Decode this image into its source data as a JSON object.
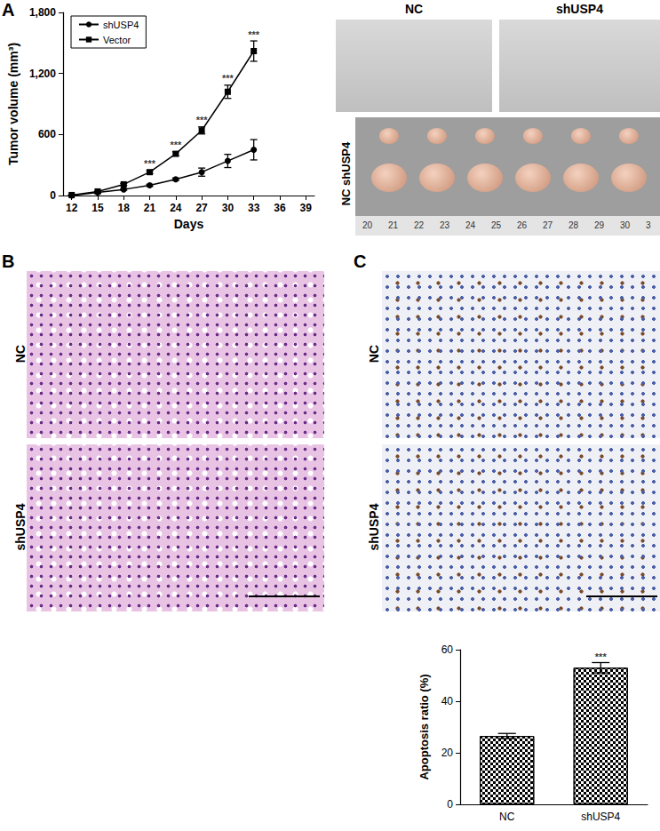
{
  "chart_data": [
    {
      "type": "line",
      "xlabel": "Days",
      "ylabel": "Tumor volume (mm³)",
      "x": [
        12,
        15,
        18,
        21,
        24,
        27,
        30,
        33
      ],
      "xlim": [
        11,
        40
      ],
      "xticks": [
        12,
        15,
        18,
        21,
        24,
        27,
        30,
        33,
        36,
        39
      ],
      "ylim": [
        0,
        1800
      ],
      "yticks": [
        0,
        600,
        {
          "value": 1200,
          "label": "1,200"
        },
        {
          "value": 1800,
          "label": "1,800"
        }
      ],
      "grid": false,
      "legend": "upper left",
      "series": [
        {
          "name": "shUSP4",
          "color": "#000000",
          "marker": "circle",
          "values": [
            0,
            30,
            60,
            100,
            160,
            230,
            340,
            450
          ],
          "errors": [
            2,
            5,
            8,
            10,
            12,
            40,
            65,
            100
          ]
        },
        {
          "name": "Vector",
          "color": "#000000",
          "marker": "square",
          "values": [
            5,
            40,
            110,
            230,
            410,
            640,
            1020,
            1420
          ],
          "errors": [
            2,
            5,
            10,
            15,
            20,
            35,
            65,
            100
          ]
        }
      ],
      "annotations": [
        {
          "series": "Vector",
          "x": 21,
          "text": "***"
        },
        {
          "series": "Vector",
          "x": 24,
          "text": "***"
        },
        {
          "series": "Vector",
          "x": 27,
          "text": "***"
        },
        {
          "series": "Vector",
          "x": 30,
          "text": "***"
        },
        {
          "series": "Vector",
          "x": 33,
          "text": "***"
        }
      ]
    },
    {
      "type": "bar",
      "ylabel": "Apoptosis ratio (%)",
      "categories": [
        "NC",
        "shUSP4"
      ],
      "values": [
        26.5,
        53
      ],
      "errors": [
        1,
        2
      ],
      "color": "#ffffff",
      "ylim": [
        0,
        60
      ],
      "yticks": [
        0,
        20,
        40,
        60
      ],
      "grid": false,
      "annotations": [
        {
          "category": "shUSP4",
          "text": "***"
        }
      ]
    }
  ],
  "panel_letters": [
    "A",
    "B",
    "C"
  ],
  "photos": {
    "mice_labels": [
      "NC",
      "shUSP4"
    ],
    "tumor_label": "NC shUSP4",
    "ruler": [
      "20",
      "21",
      "22",
      "23",
      "24",
      "25",
      "26",
      "27",
      "28",
      "29",
      "30",
      "3"
    ]
  },
  "histology": {
    "B": [
      "NC",
      "shUSP4"
    ],
    "C": [
      "NC",
      "shUSP4"
    ]
  }
}
